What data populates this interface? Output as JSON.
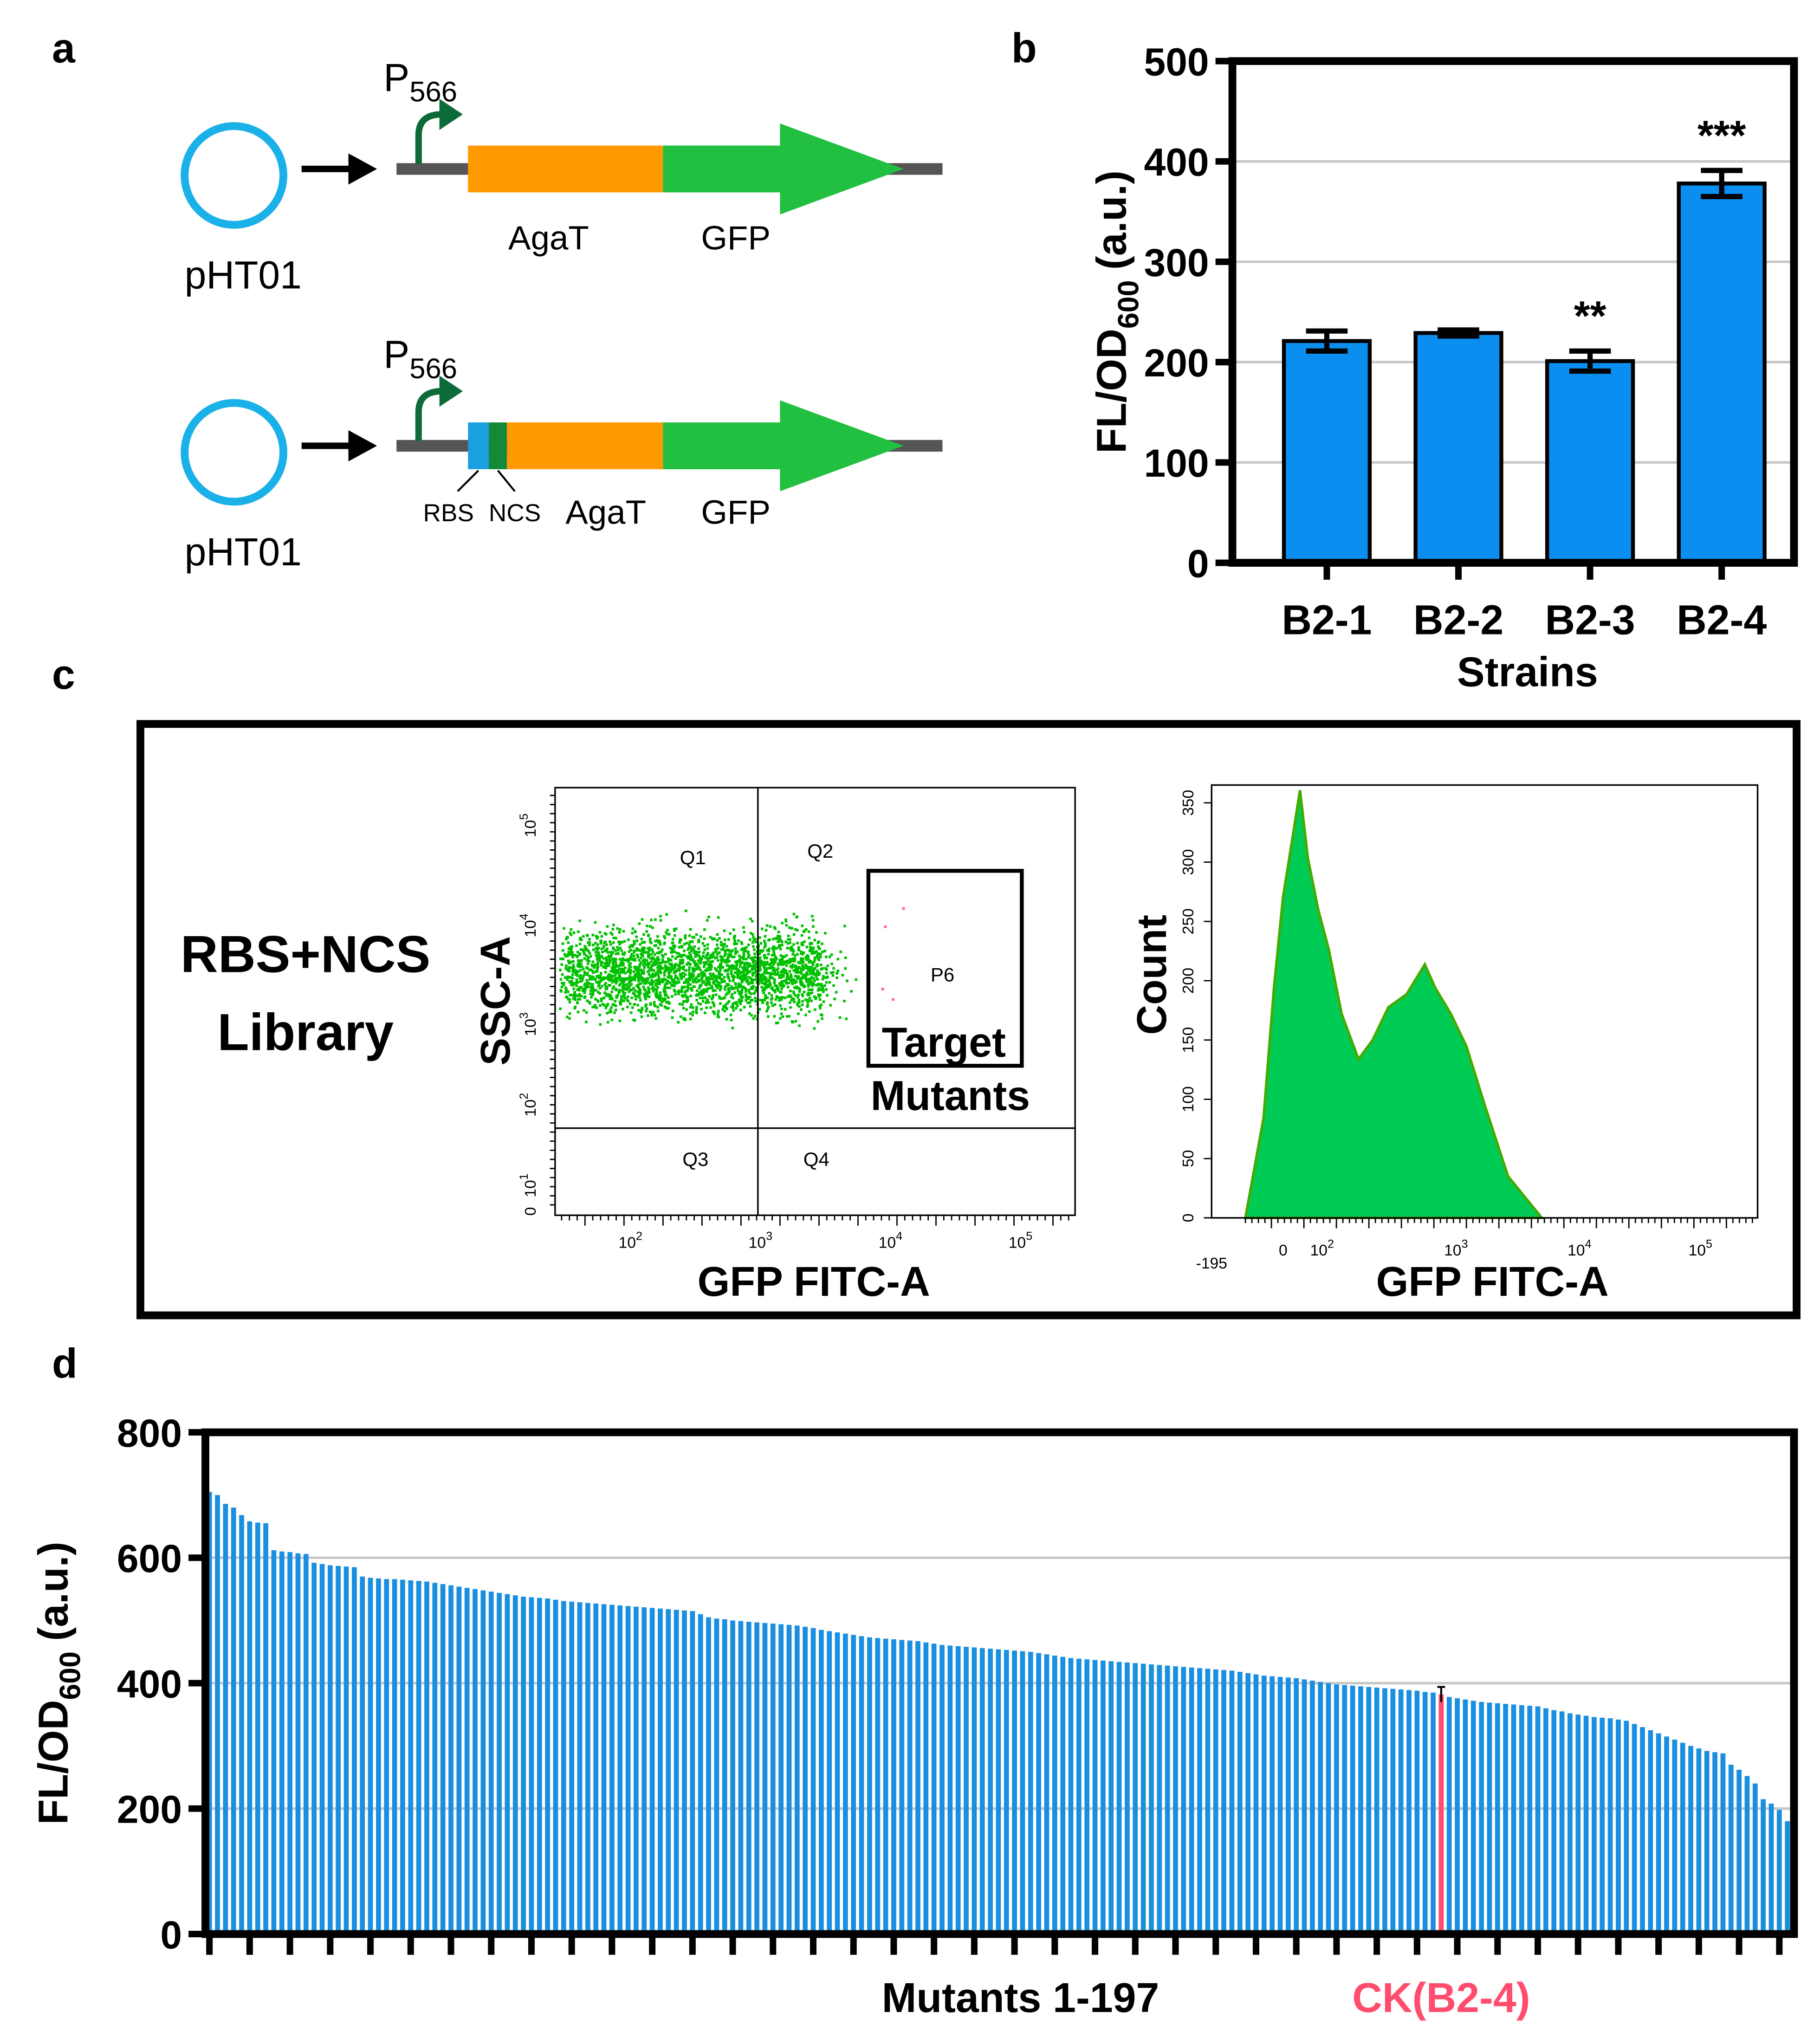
{
  "panel_labels": [
    "a",
    "b",
    "c",
    "d"
  ],
  "diagram": {
    "constructs": [
      {
        "plasmid": "pHT01",
        "promoter": {
          "base": "P",
          "sub": "566"
        },
        "genes": [
          "AgaT",
          "GFP"
        ]
      },
      {
        "plasmid": "pHT01",
        "promoter": {
          "base": "P",
          "sub": "566"
        },
        "parts": [
          "RBS",
          "NCS"
        ],
        "genes": [
          "AgaT",
          "GFP"
        ]
      }
    ]
  },
  "flow": {
    "library": [
      "RBS+NCS",
      "Library"
    ],
    "dot_plot": {
      "ylabel": "SSC-A",
      "xlabel": "GFP FITC-A",
      "quadrants": [
        "Q1",
        "Q2",
        "Q3",
        "Q4"
      ],
      "gate": "P6",
      "gate_label": [
        "Target",
        "Mutants"
      ],
      "xtick_labels": [
        {
          "base": "10",
          "exp": "2"
        },
        {
          "base": "10",
          "exp": "3"
        },
        {
          "base": "10",
          "exp": "4"
        },
        {
          "base": "10",
          "exp": "5"
        }
      ],
      "ytick_labels": [
        {
          "base": "10",
          "exp": "5"
        },
        {
          "base": "10",
          "exp": "4"
        },
        {
          "base": "10",
          "exp": "3"
        },
        {
          "base": "10",
          "exp": "2"
        },
        {
          "base": "10",
          "exp": "1"
        },
        "0"
      ]
    },
    "histogram": {
      "ylabel": "Count",
      "xlabel": "GFP FITC-A",
      "ylim": [
        0,
        365
      ],
      "yticks": [
        0,
        50,
        100,
        150,
        200,
        250,
        300,
        350
      ],
      "xtick_labels": [
        "-195",
        "0",
        {
          "base": "10",
          "exp": "2"
        },
        {
          "base": "10",
          "exp": "3"
        },
        {
          "base": "10",
          "exp": "4"
        },
        {
          "base": "10",
          "exp": "5"
        }
      ]
    }
  },
  "chart_data": [
    {
      "type": "bar",
      "ylabel": {
        "base": "FL/OD",
        "sub": "600",
        "unit": "(a.u.)"
      },
      "xlabel": "Strains",
      "categories": [
        "B2-1",
        "B2-2",
        "B2-3",
        "B2-4"
      ],
      "values": [
        221,
        229,
        201,
        378
      ],
      "errors": [
        10,
        3,
        10,
        13
      ],
      "annotations": [
        {
          "category": "B2-3",
          "text": "**"
        },
        {
          "category": "B2-4",
          "text": "***"
        }
      ],
      "color": "#0a8ff0",
      "ylim": [
        0,
        500
      ],
      "yticks": [
        0,
        100,
        200,
        300,
        400,
        500
      ],
      "grid": true
    },
    {
      "type": "bar",
      "ylabel": {
        "base": "FL/OD",
        "sub": "600",
        "unit": "(a.u.)"
      },
      "xlabel": "Mutants 1-197",
      "values": [
        705,
        700,
        686,
        680,
        668,
        658,
        656,
        655,
        612,
        610,
        609,
        607,
        606,
        592,
        590,
        588,
        587,
        586,
        585,
        570,
        568,
        567,
        566,
        566,
        565,
        564,
        563,
        562,
        560,
        558,
        556,
        554,
        552,
        550,
        548,
        546,
        544,
        542,
        540,
        538,
        537,
        536,
        535,
        533,
        531,
        530,
        529,
        528,
        527,
        526,
        525,
        524,
        523,
        522,
        521,
        520,
        519,
        518,
        517,
        516,
        515,
        510,
        505,
        503,
        502,
        500,
        499,
        498,
        497,
        496,
        495,
        494,
        493,
        492,
        490,
        488,
        485,
        483,
        481,
        479,
        477,
        475,
        473,
        472,
        471,
        470,
        469,
        468,
        467,
        465,
        463,
        461,
        460,
        459,
        458,
        457,
        456,
        455,
        454,
        453,
        452,
        451,
        450,
        448,
        446,
        444,
        442,
        440,
        439,
        438,
        437,
        436,
        435,
        434,
        433,
        432,
        431,
        430,
        429,
        428,
        427,
        426,
        425,
        424,
        423,
        422,
        421,
        420,
        418,
        416,
        414,
        412,
        411,
        410,
        409,
        408,
        406,
        404,
        402,
        400,
        398,
        397,
        396,
        395,
        394,
        393,
        392,
        391,
        390,
        389,
        388,
        386,
        385,
        382,
        378,
        376,
        374,
        372,
        370,
        369,
        368,
        367,
        366,
        365,
        364,
        363,
        360,
        357,
        355,
        352,
        350,
        348,
        346,
        345,
        344,
        342,
        340,
        335,
        330,
        325,
        320,
        315,
        310,
        305,
        300,
        296,
        292,
        290,
        288,
        270,
        262,
        252,
        240,
        215,
        208,
        198,
        180
      ],
      "highlight": {
        "index": 153,
        "label": "CK(B2-4)",
        "color": "#ff4d6d",
        "error": 12
      },
      "color": "#1a8fe0",
      "ylim": [
        0,
        800
      ],
      "yticks": [
        0,
        200,
        400,
        600,
        800
      ],
      "grid": true
    }
  ]
}
